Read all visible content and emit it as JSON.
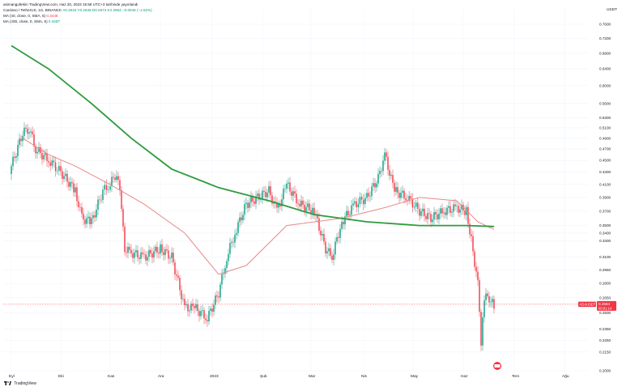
{
  "header": {
    "publish_line": "asimangultekin TradingView.com, Haz 20, 2023 15:58 UTC+3 tarihinde yayınlandı",
    "symbol_line": "Cardano / TetherUS, 1G, BINANCE",
    "ohlc": "A0.2634 Y0.2648 D0.2574 K0.2584 −0.0046 (−1.52%)",
    "ma50": "MA (50, close, 0, SMA, 5)",
    "ma50_value": "0.3448",
    "ma200": "MA (200, close, 0, SMA, 5)",
    "ma200_value": "0.3487"
  },
  "axis_unit": "USDT",
  "footer": {
    "brand": "TradingView"
  },
  "price_tag": {
    "symbol": "ADAUSDT",
    "price": "0.2584",
    "countdown": "00:01:14"
  },
  "colors": {
    "up": "#089981",
    "down": "#f23645",
    "ma50": "#e88a8a",
    "ma200": "#2e9b3f",
    "grid": "#f0f3fa",
    "price_line": "#f23645"
  },
  "chart_data": {
    "type": "candlestick",
    "title": "",
    "xlabel": "",
    "ylabel": "USDT",
    "x_ticks": [
      "Eyl",
      "Eki",
      "Kas",
      "Ara",
      "2023",
      "Şub",
      "Mar",
      "Nis",
      "May",
      "Haz",
      "Tem",
      "Ağu"
    ],
    "y_ticks": [
      "0.7600",
      "0.7200",
      "0.6800",
      "0.6400",
      "0.6000",
      "0.5600",
      "0.5300",
      "0.5100",
      "0.4900",
      "0.4700",
      "0.4500",
      "0.4300",
      "0.4100",
      "0.3900",
      "0.3700",
      "0.3500",
      "0.3400",
      "0.3300",
      "0.3100",
      "0.2950",
      "0.2800",
      "0.2650",
      "0.2500",
      "0.2350",
      "0.2250",
      "0.2150",
      "0.2000"
    ],
    "ylim": [
      0.2,
      0.76
    ],
    "scale": "log",
    "grid": true,
    "series": [
      {
        "name": "ADAUSDT",
        "kind": "candles",
        "points": [
          {
            "date": "Eyl 1",
            "close": 0.44
          },
          {
            "date": "Eyl 8",
            "close": 0.5
          },
          {
            "date": "Eyl 12",
            "close": 0.51
          },
          {
            "date": "Eyl 16",
            "close": 0.47
          },
          {
            "date": "Eyl 24",
            "close": 0.45
          },
          {
            "date": "Eki 1",
            "close": 0.43
          },
          {
            "date": "Eki 10",
            "close": 0.4
          },
          {
            "date": "Eki 14",
            "close": 0.36
          },
          {
            "date": "Eki 20",
            "close": 0.355
          },
          {
            "date": "Eki 27",
            "close": 0.4
          },
          {
            "date": "Kas 1",
            "close": 0.41
          },
          {
            "date": "Kas 5",
            "close": 0.43
          },
          {
            "date": "Kas 8",
            "close": 0.38
          },
          {
            "date": "Kas 10",
            "close": 0.32
          },
          {
            "date": "Kas 14",
            "close": 0.315
          },
          {
            "date": "Kas 22",
            "close": 0.31
          },
          {
            "date": "Ara 1",
            "close": 0.32
          },
          {
            "date": "Ara 8",
            "close": 0.31
          },
          {
            "date": "Ara 16",
            "close": 0.255
          },
          {
            "date": "Ara 22",
            "close": 0.255
          },
          {
            "date": "Ara 30",
            "close": 0.245
          },
          {
            "date": "2023 Oca 5",
            "close": 0.27
          },
          {
            "date": "Oca 10",
            "close": 0.31
          },
          {
            "date": "Oca 15",
            "close": 0.34
          },
          {
            "date": "Oca 22",
            "close": 0.38
          },
          {
            "date": "Oca 29",
            "close": 0.39
          },
          {
            "date": "Şub 5",
            "close": 0.4
          },
          {
            "date": "Şub 10",
            "close": 0.37
          },
          {
            "date": "Şub 16",
            "close": 0.41
          },
          {
            "date": "Şub 24",
            "close": 0.38
          },
          {
            "date": "Mar 3",
            "close": 0.37
          },
          {
            "date": "Mar 10",
            "close": 0.32
          },
          {
            "date": "Mar 14",
            "close": 0.31
          },
          {
            "date": "Mar 20",
            "close": 0.355
          },
          {
            "date": "Mar 28",
            "close": 0.38
          },
          {
            "date": "Nis 3",
            "close": 0.39
          },
          {
            "date": "Nis 10",
            "close": 0.42
          },
          {
            "date": "Nis 14",
            "close": 0.46
          },
          {
            "date": "Nis 20",
            "close": 0.4
          },
          {
            "date": "Nis 28",
            "close": 0.39
          },
          {
            "date": "May 5",
            "close": 0.37
          },
          {
            "date": "May 12",
            "close": 0.36
          },
          {
            "date": "May 20",
            "close": 0.37
          },
          {
            "date": "May 28",
            "close": 0.375
          },
          {
            "date": "Haz 3",
            "close": 0.37
          },
          {
            "date": "Haz 6",
            "close": 0.33
          },
          {
            "date": "Haz 10",
            "close": 0.28
          },
          {
            "date": "Haz 12",
            "close": 0.22
          },
          {
            "date": "Haz 14",
            "close": 0.265
          },
          {
            "date": "Haz 18",
            "close": 0.265
          },
          {
            "date": "Haz 20",
            "close": 0.2584
          }
        ]
      },
      {
        "name": "MA (50, close, 0, SMA, 5)",
        "kind": "line",
        "points": [
          {
            "date": "Eyl 8",
            "value": 0.49
          },
          {
            "date": "Eyl 24",
            "value": 0.46
          },
          {
            "date": "Eki 10",
            "value": 0.44
          },
          {
            "date": "Kas 1",
            "value": 0.41
          },
          {
            "date": "Kas 22",
            "value": 0.38
          },
          {
            "date": "Ara 16",
            "value": 0.34
          },
          {
            "date": "2023 Oca 5",
            "value": 0.29
          },
          {
            "date": "Oca 22",
            "value": 0.3
          },
          {
            "date": "Şub 16",
            "value": 0.35
          },
          {
            "date": "Mar 20",
            "value": 0.36
          },
          {
            "date": "Nis 14",
            "value": 0.375
          },
          {
            "date": "May 5",
            "value": 0.39
          },
          {
            "date": "May 28",
            "value": 0.385
          },
          {
            "date": "Haz 10",
            "value": 0.355
          },
          {
            "date": "Haz 20",
            "value": 0.3448
          }
        ]
      },
      {
        "name": "MA (200, close, 0, SMA, 5)",
        "kind": "line",
        "points": [
          {
            "date": "Eyl 1",
            "value": 0.7
          },
          {
            "date": "Eyl 24",
            "value": 0.64
          },
          {
            "date": "Eki 20",
            "value": 0.56
          },
          {
            "date": "Kas 14",
            "value": 0.49
          },
          {
            "date": "Ara 8",
            "value": 0.435
          },
          {
            "date": "2023 Oca 5",
            "value": 0.405
          },
          {
            "date": "Şub 5",
            "value": 0.385
          },
          {
            "date": "Mar 3",
            "value": 0.365
          },
          {
            "date": "Nis 3",
            "value": 0.355
          },
          {
            "date": "May 5",
            "value": 0.35
          },
          {
            "date": "Haz 3",
            "value": 0.35
          },
          {
            "date": "Haz 20",
            "value": 0.3487
          }
        ]
      }
    ]
  }
}
